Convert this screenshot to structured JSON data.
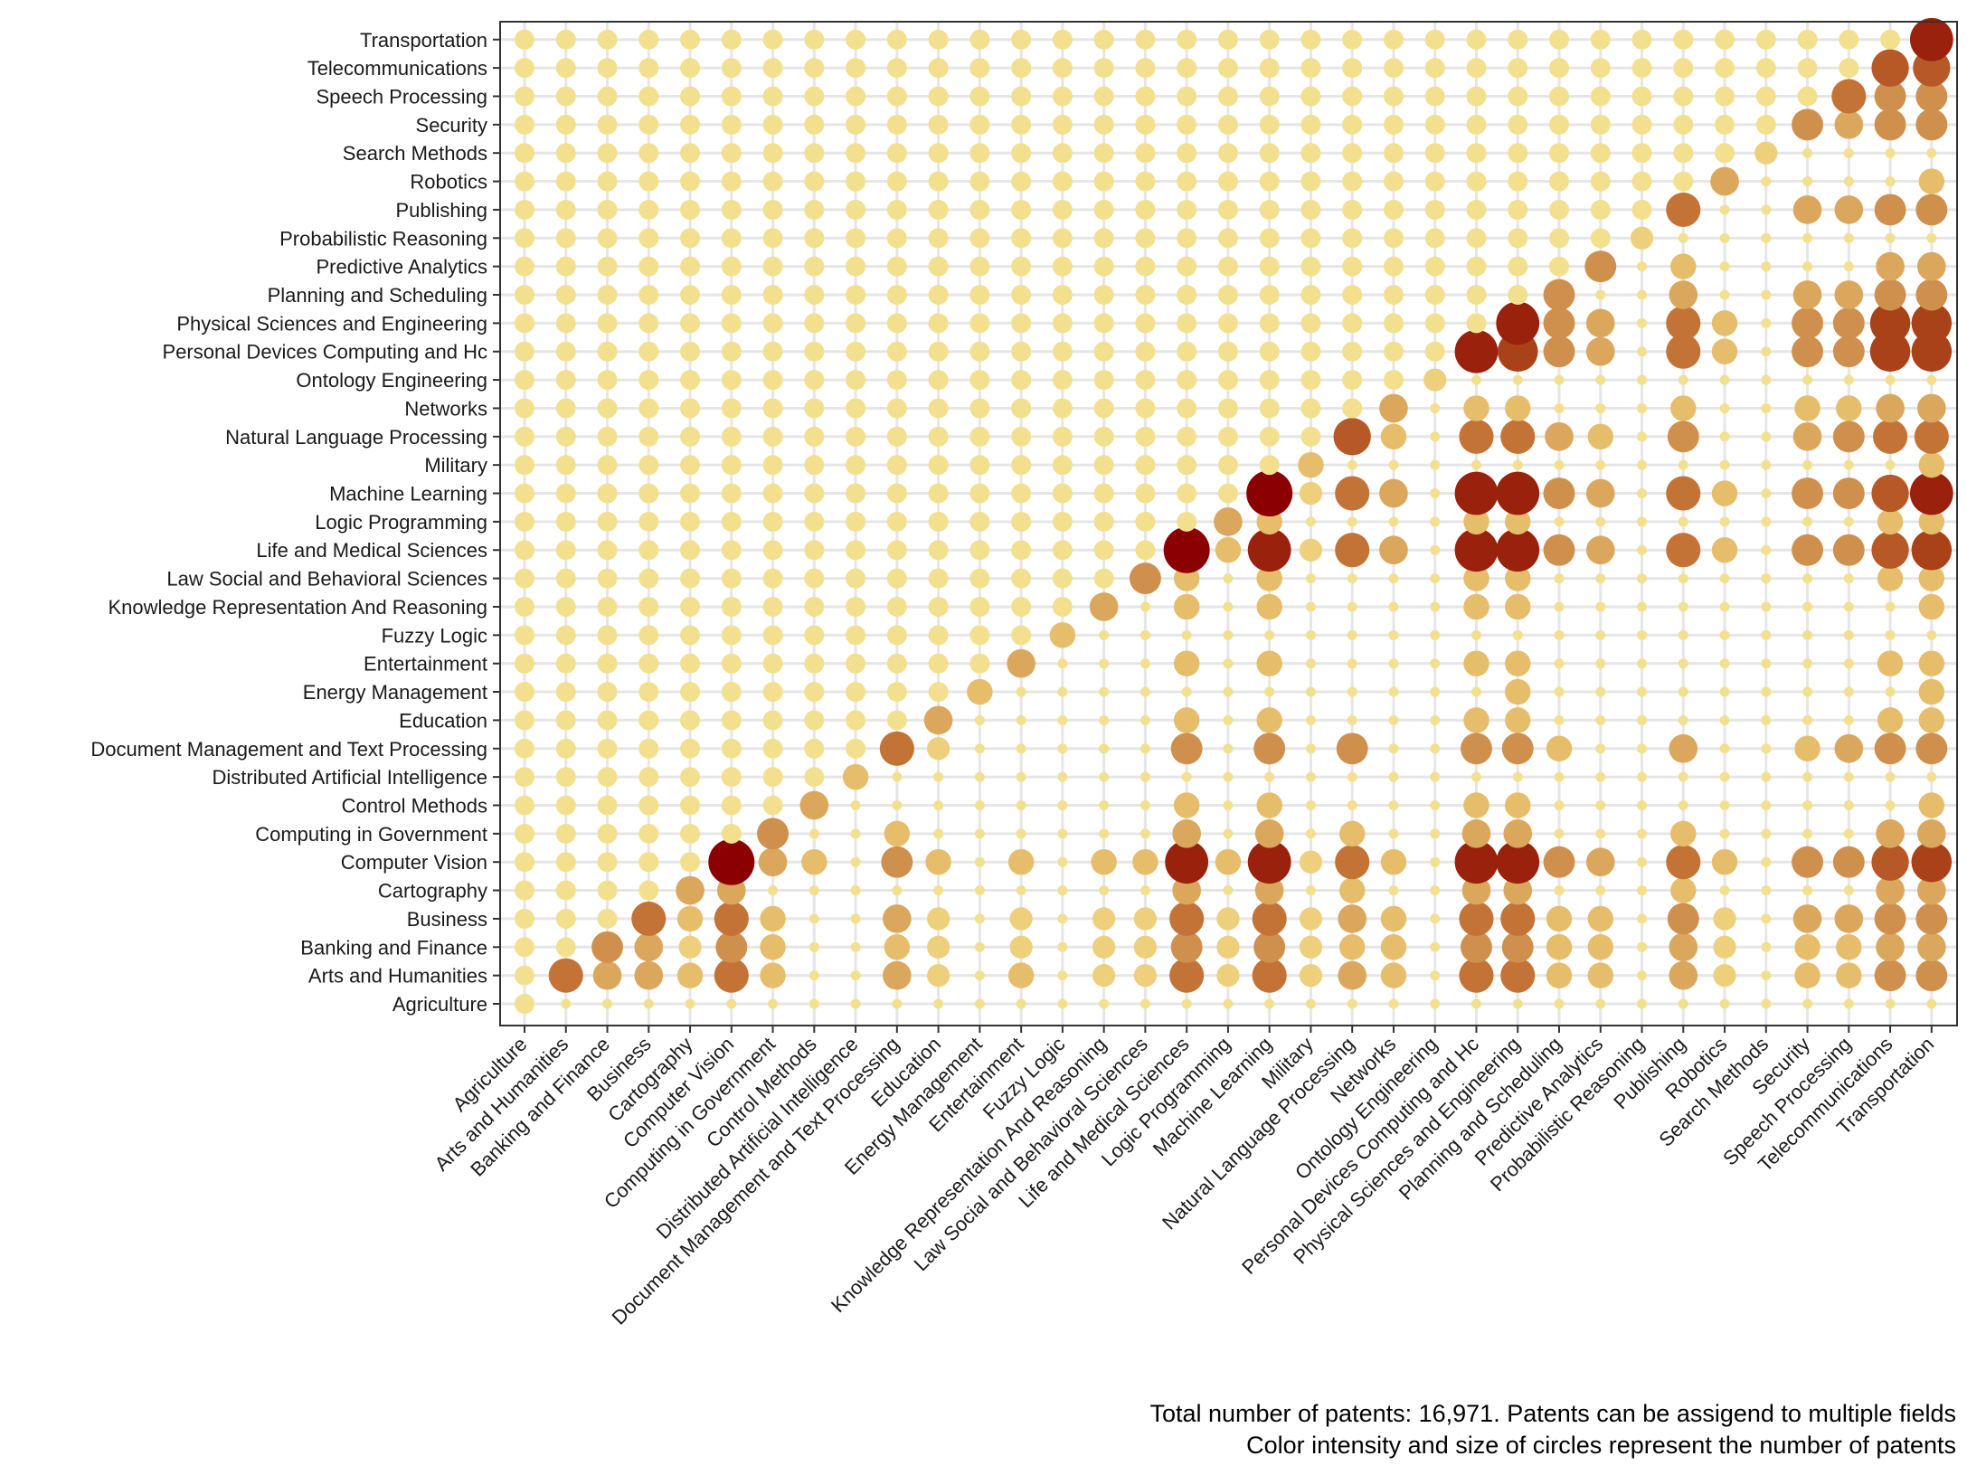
{
  "chart_data": {
    "type": "scatter",
    "subtype": "bubble-matrix",
    "categories": [
      "Agriculture",
      "Arts and Humanities",
      "Banking and Finance",
      "Business",
      "Cartography",
      "Computer Vision",
      "Computing in Government",
      "Control Methods",
      "Distributed Artificial Intelligence",
      "Document Management and Text Processing",
      "Education",
      "Energy Management",
      "Entertainment",
      "Fuzzy Logic",
      "Knowledge Representation And Reasoning",
      "Law Social and Behavioral Sciences",
      "Life and Medical Sciences",
      "Logic Programming",
      "Machine Learning",
      "Military",
      "Natural Language Processing",
      "Networks",
      "Ontology Engineering",
      "Personal Devices Computing and Hc",
      "Physical Sciences and Engineering",
      "Planning and Scheduling",
      "Predictive Analytics",
      "Probabilistic Reasoning",
      "Publishing",
      "Robotics",
      "Search Methods",
      "Security",
      "Speech Processing",
      "Telecommunications",
      "Transportation"
    ],
    "value_scale": "relative intensity 0-10 (estimated from circle size and color)",
    "defaults": {
      "lower_triangle": 1,
      "upper_triangle": 0.3
    },
    "overrides": {
      "Arts and Humanities": {
        "Arts and Humanities": 6,
        "Banking and Finance": 4,
        "Business": 4,
        "Computer Vision": 6,
        "Computing in Government": 3,
        "Cartography": 3,
        "Document Management and Text Processing": 4,
        "Education": 2,
        "Entertainment": 3,
        "Knowledge Representation And Reasoning": 2,
        "Law Social and Behavioral Sciences": 2,
        "Life and Medical Sciences": 6,
        "Logic Programming": 2,
        "Machine Learning": 6,
        "Military": 2,
        "Natural Language Processing": 4,
        "Networks": 3,
        "Personal Devices Computing and Hc": 6,
        "Physical Sciences and Engineering": 6,
        "Planning and Scheduling": 3,
        "Predictive Analytics": 3,
        "Publishing": 4,
        "Robotics": 2,
        "Security": 3,
        "Speech Processing": 3,
        "Telecommunications": 5,
        "Transportation": 5
      },
      "Banking and Finance": {
        "Banking and Finance": 5,
        "Business": 4,
        "Computer Vision": 5,
        "Computing in Government": 3,
        "Cartography": 2,
        "Document Management and Text Processing": 3,
        "Education": 2,
        "Entertainment": 2,
        "Knowledge Representation And Reasoning": 2,
        "Law Social and Behavioral Sciences": 2,
        "Life and Medical Sciences": 5,
        "Logic Programming": 2,
        "Machine Learning": 5,
        "Military": 2,
        "Natural Language Processing": 3,
        "Networks": 3,
        "Personal Devices Computing and Hc": 5,
        "Physical Sciences and Engineering": 5,
        "Planning and Scheduling": 3,
        "Predictive Analytics": 3,
        "Publishing": 4,
        "Robotics": 2,
        "Security": 3,
        "Speech Processing": 3,
        "Telecommunications": 4,
        "Transportation": 4
      },
      "Business": {
        "Business": 6,
        "Computer Vision": 6,
        "Computing in Government": 3,
        "Cartography": 3,
        "Document Management and Text Processing": 4,
        "Education": 2,
        "Entertainment": 2,
        "Knowledge Representation And Reasoning": 2,
        "Law Social and Behavioral Sciences": 2,
        "Life and Medical Sciences": 6,
        "Logic Programming": 2,
        "Machine Learning": 6,
        "Military": 2,
        "Natural Language Processing": 4,
        "Networks": 3,
        "Personal Devices Computing and Hc": 6,
        "Physical Sciences and Engineering": 6,
        "Planning and Scheduling": 3,
        "Predictive Analytics": 3,
        "Publishing": 5,
        "Robotics": 2,
        "Security": 4,
        "Speech Processing": 4,
        "Telecommunications": 5,
        "Transportation": 5
      },
      "Cartography": {
        "Cartography": 4,
        "Computer Vision": 4,
        "Life and Medical Sciences": 4,
        "Machine Learning": 4,
        "Personal Devices Computing and Hc": 4,
        "Physical Sciences and Engineering": 4,
        "Telecommunications": 4,
        "Transportation": 4,
        "Natural Language Processing": 3,
        "Publishing": 3
      },
      "Computer Vision": {
        "Computer Vision": 10,
        "Computing in Government": 4,
        "Control Methods": 3,
        "Document Management and Text Processing": 5,
        "Education": 3,
        "Entertainment": 3,
        "Knowledge Representation And Reasoning": 3,
        "Law Social and Behavioral Sciences": 3,
        "Life and Medical Sciences": 9,
        "Logic Programming": 3,
        "Machine Learning": 9,
        "Military": 2,
        "Natural Language Processing": 6,
        "Networks": 3,
        "Personal Devices Computing and Hc": 9,
        "Physical Sciences and Engineering": 9,
        "Planning and Scheduling": 5,
        "Predictive Analytics": 4,
        "Publishing": 6,
        "Robotics": 3,
        "Security": 5,
        "Speech Processing": 5,
        "Telecommunications": 7,
        "Transportation": 8
      },
      "Computing in Government": {
        "Computing in Government": 5,
        "Life and Medical Sciences": 4,
        "Machine Learning": 4,
        "Personal Devices Computing and Hc": 4,
        "Physical Sciences and Engineering": 4,
        "Natural Language Processing": 3,
        "Publishing": 3,
        "Telecommunications": 4,
        "Transportation": 4,
        "Document Management and Text Processing": 3
      },
      "Control Methods": {
        "Control Methods": 4,
        "Life and Medical Sciences": 3,
        "Machine Learning": 3,
        "Personal Devices Computing and Hc": 3,
        "Physical Sciences and Engineering": 3,
        "Transportation": 3
      },
      "Distributed Artificial Intelligence": {
        "Distributed Artificial Intelligence": 3
      },
      "Document Management and Text Processing": {
        "Document Management and Text Processing": 6,
        "Life and Medical Sciences": 5,
        "Machine Learning": 5,
        "Personal Devices Computing and Hc": 5,
        "Physical Sciences and Engineering": 5,
        "Natural Language Processing": 5,
        "Publishing": 4,
        "Planning and Scheduling": 3,
        "Security": 3,
        "Speech Processing": 4,
        "Telecommunications": 5,
        "Transportation": 5,
        "Education": 2
      },
      "Education": {
        "Education": 4,
        "Life and Medical Sciences": 3,
        "Machine Learning": 3,
        "Personal Devices Computing and Hc": 3,
        "Physical Sciences and Engineering": 3,
        "Telecommunications": 3,
        "Transportation": 3
      },
      "Energy Management": {
        "Energy Management": 3,
        "Physical Sciences and Engineering": 3,
        "Transportation": 3
      },
      "Entertainment": {
        "Entertainment": 4,
        "Life and Medical Sciences": 3,
        "Machine Learning": 3,
        "Personal Devices Computing and Hc": 3,
        "Physical Sciences and Engineering": 3,
        "Telecommunications": 3,
        "Transportation": 3
      },
      "Fuzzy Logic": {
        "Fuzzy Logic": 3
      },
      "Knowledge Representation And Reasoning": {
        "Knowledge Representation And Reasoning": 4,
        "Life and Medical Sciences": 3,
        "Machine Learning": 3,
        "Personal Devices Computing and Hc": 3,
        "Physical Sciences and Engineering": 3,
        "Transportation": 3
      },
      "Law Social and Behavioral Sciences": {
        "Law Social and Behavioral Sciences": 5,
        "Life and Medical Sciences": 3,
        "Machine Learning": 3,
        "Personal Devices Computing and Hc": 3,
        "Physical Sciences and Engineering": 3,
        "Telecommunications": 3,
        "Transportation": 3
      },
      "Life and Medical Sciences": {
        "Life and Medical Sciences": 10,
        "Logic Programming": 3,
        "Machine Learning": 9,
        "Military": 2,
        "Natural Language Processing": 6,
        "Networks": 4,
        "Personal Devices Computing and Hc": 9,
        "Physical Sciences and Engineering": 9,
        "Planning and Scheduling": 5,
        "Predictive Analytics": 4,
        "Publishing": 6,
        "Robotics": 3,
        "Security": 5,
        "Speech Processing": 5,
        "Telecommunications": 7,
        "Transportation": 8
      },
      "Logic Programming": {
        "Logic Programming": 4,
        "Machine Learning": 3,
        "Personal Devices Computing and Hc": 3,
        "Physical Sciences and Engineering": 3,
        "Telecommunications": 3,
        "Transportation": 3
      },
      "Machine Learning": {
        "Machine Learning": 10,
        "Military": 2,
        "Natural Language Processing": 6,
        "Networks": 4,
        "Personal Devices Computing and Hc": 9,
        "Physical Sciences and Engineering": 9,
        "Planning and Scheduling": 5,
        "Predictive Analytics": 4,
        "Publishing": 6,
        "Robotics": 3,
        "Security": 5,
        "Speech Processing": 5,
        "Telecommunications": 7,
        "Transportation": 9
      },
      "Military": {
        "Military": 3,
        "Transportation": 3
      },
      "Natural Language Processing": {
        "Natural Language Processing": 7,
        "Networks": 3,
        "Personal Devices Computing and Hc": 6,
        "Physical Sciences and Engineering": 6,
        "Planning and Scheduling": 4,
        "Predictive Analytics": 3,
        "Publishing": 5,
        "Security": 4,
        "Speech Processing": 5,
        "Telecommunications": 6,
        "Transportation": 6
      },
      "Networks": {
        "Networks": 4,
        "Personal Devices Computing and Hc": 3,
        "Physical Sciences and Engineering": 3,
        "Publishing": 3,
        "Security": 3,
        "Speech Processing": 3,
        "Telecommunications": 4,
        "Transportation": 4
      },
      "Ontology Engineering": {
        "Ontology Engineering": 2
      },
      "Personal Devices Computing and Hc": {
        "Personal Devices Computing and Hc": 9,
        "Physical Sciences and Engineering": 8,
        "Planning and Scheduling": 5,
        "Predictive Analytics": 4,
        "Publishing": 6,
        "Robotics": 3,
        "Security": 5,
        "Speech Processing": 5,
        "Telecommunications": 8,
        "Transportation": 8
      },
      "Physical Sciences and Engineering": {
        "Physical Sciences and Engineering": 9,
        "Planning and Scheduling": 5,
        "Predictive Analytics": 4,
        "Publishing": 6,
        "Robotics": 3,
        "Security": 5,
        "Speech Processing": 5,
        "Telecommunications": 8,
        "Transportation": 8
      },
      "Planning and Scheduling": {
        "Planning and Scheduling": 5,
        "Publishing": 4,
        "Security": 4,
        "Speech Processing": 4,
        "Telecommunications": 5,
        "Transportation": 5
      },
      "Predictive Analytics": {
        "Predictive Analytics": 5,
        "Publishing": 3,
        "Telecommunications": 4,
        "Transportation": 4
      },
      "Probabilistic Reasoning": {
        "Probabilistic Reasoning": 2
      },
      "Publishing": {
        "Publishing": 6,
        "Security": 4,
        "Speech Processing": 4,
        "Telecommunications": 5,
        "Transportation": 5
      },
      "Robotics": {
        "Robotics": 4,
        "Transportation": 3
      },
      "Search Methods": {
        "Search Methods": 2
      },
      "Security": {
        "Security": 5,
        "Speech Processing": 4,
        "Telecommunications": 5,
        "Transportation": 5
      },
      "Speech Processing": {
        "Speech Processing": 6,
        "Telecommunications": 5,
        "Transportation": 5
      },
      "Telecommunications": {
        "Telecommunications": 7,
        "Transportation": 7
      },
      "Transportation": {
        "Transportation": 9
      }
    },
    "color_scale": [
      "#f3e08e",
      "#e8c16d",
      "#d39a55",
      "#c0682f",
      "#a63c16",
      "#8b0000"
    ],
    "grid": true,
    "legend": "none",
    "caption_lines": [
      "Total number of patents: 16,971. Patents can be assigend to multiple fields",
      "Color intensity and size of circles represent the number of patents"
    ]
  }
}
